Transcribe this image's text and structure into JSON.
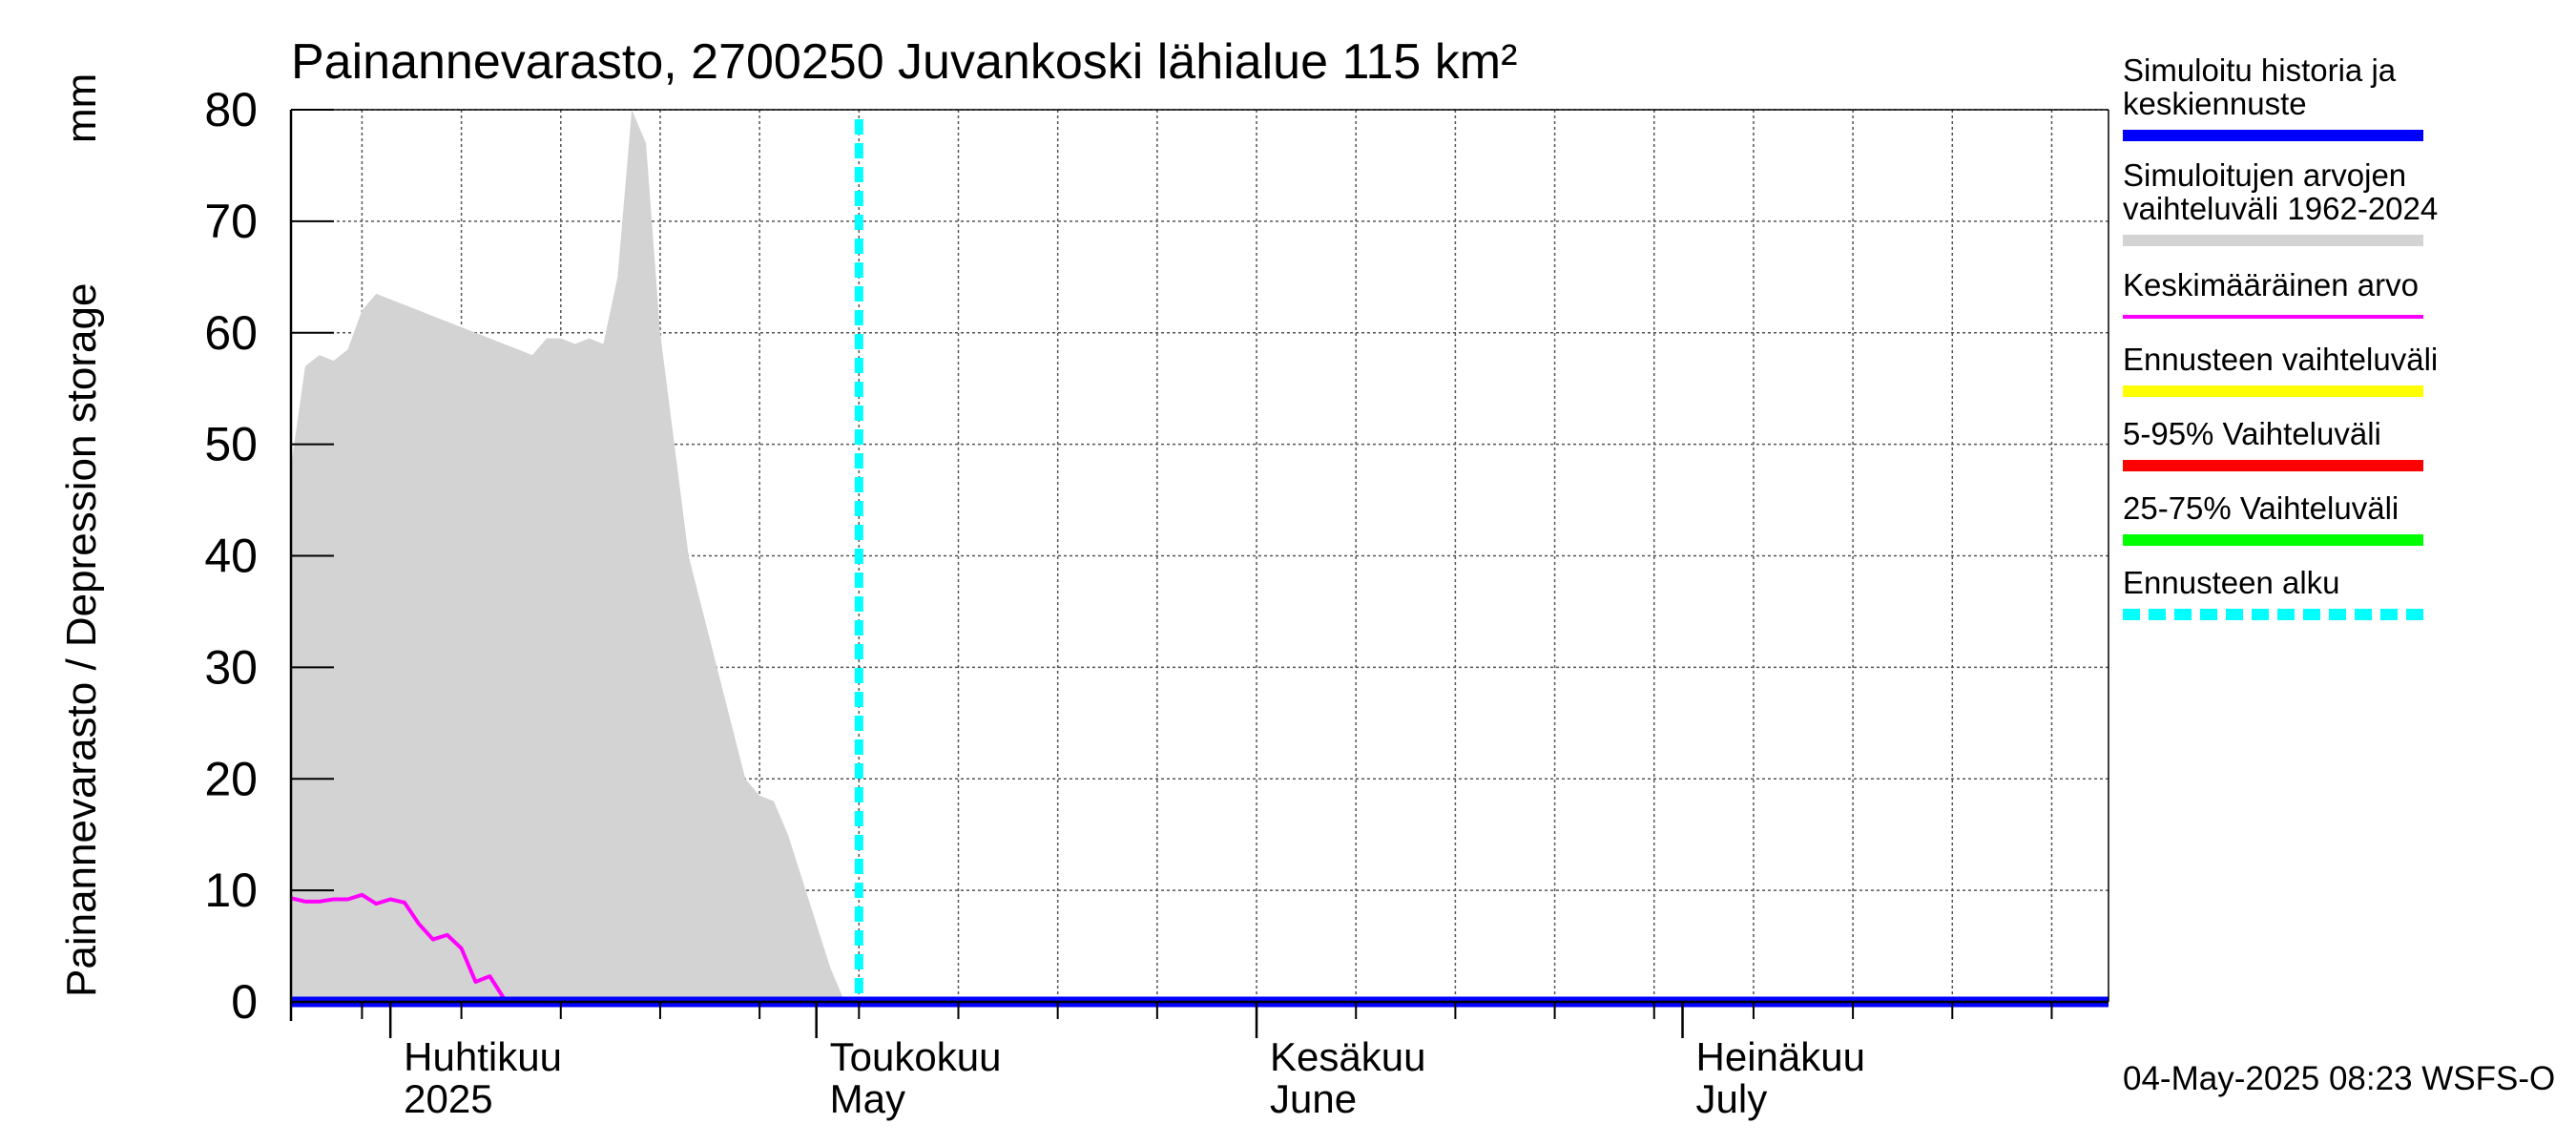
{
  "chart_data": {
    "type": "area",
    "title": "Painannevarasto, 2700250 Juvankoski lähialue 115 km²",
    "ylabel": "Painannevarasto / Depression storage",
    "yunit": "mm",
    "ylim": [
      0,
      80
    ],
    "yticks": [
      0,
      10,
      20,
      30,
      40,
      50,
      60,
      70,
      80
    ],
    "xlim": [
      "2025-03-25",
      "2025-07-31"
    ],
    "grid": true,
    "month_labels": [
      {
        "date": "2025-04-01",
        "line1": "Huhtikuu",
        "line2": "2025"
      },
      {
        "date": "2025-05-01",
        "line1": "Toukokuu",
        "line2": "May"
      },
      {
        "date": "2025-06-01",
        "line1": "Kesäkuu",
        "line2": "June"
      },
      {
        "date": "2025-07-01",
        "line1": "Heinäkuu",
        "line2": "July"
      }
    ],
    "forecast_start": "2025-05-04",
    "series": [
      {
        "name": "Simuloitujen arvojen vaihteluväli 1962-2024",
        "kind": "band",
        "color": "#d3d3d3",
        "x": [
          "2025-03-25",
          "2025-03-26",
          "2025-03-27",
          "2025-03-28",
          "2025-03-29",
          "2025-03-30",
          "2025-03-31",
          "2025-04-01",
          "2025-04-02",
          "2025-04-03",
          "2025-04-04",
          "2025-04-05",
          "2025-04-06",
          "2025-04-07",
          "2025-04-08",
          "2025-04-09",
          "2025-04-10",
          "2025-04-11",
          "2025-04-12",
          "2025-04-13",
          "2025-04-14",
          "2025-04-15",
          "2025-04-16",
          "2025-04-17",
          "2025-04-18",
          "2025-04-19",
          "2025-04-20",
          "2025-04-21",
          "2025-04-22",
          "2025-04-23",
          "2025-04-24",
          "2025-04-25",
          "2025-04-26",
          "2025-04-27",
          "2025-04-28",
          "2025-04-29",
          "2025-04-30",
          "2025-05-01",
          "2025-05-02",
          "2025-05-03",
          "2025-05-04",
          "2025-05-05",
          "2025-05-06",
          "2025-05-07",
          "2025-05-08",
          "2025-05-09",
          "2025-05-10",
          "2025-05-11"
        ],
        "upper": [
          48,
          57,
          58,
          57.5,
          58.5,
          62,
          63.5,
          63,
          62.5,
          62,
          61.5,
          61,
          60.5,
          60,
          59.5,
          59,
          58.5,
          58,
          59.5,
          59.5,
          59,
          59.5,
          59,
          65,
          80,
          77,
          60,
          50,
          40,
          35,
          30,
          25,
          20,
          18.5,
          18,
          15,
          11,
          7,
          3,
          0,
          0,
          0,
          0,
          0,
          0,
          0,
          0,
          0
        ],
        "lower": [
          0,
          0,
          0,
          0,
          0,
          0,
          0,
          0,
          0,
          0,
          0,
          0,
          0,
          0,
          0,
          0,
          0,
          0,
          0,
          0,
          0,
          0,
          0,
          0,
          0,
          0,
          0,
          0,
          0,
          0,
          0,
          0,
          0,
          0,
          0,
          0,
          0,
          0,
          0,
          0,
          0,
          0,
          0,
          0,
          0,
          0,
          0,
          0
        ]
      },
      {
        "name": "Keskimääräinen arvo",
        "kind": "line",
        "color": "#ff00ff",
        "x": [
          "2025-03-25",
          "2025-03-26",
          "2025-03-27",
          "2025-03-28",
          "2025-03-29",
          "2025-03-30",
          "2025-03-31",
          "2025-04-01",
          "2025-04-02",
          "2025-04-03",
          "2025-04-04",
          "2025-04-05",
          "2025-04-06",
          "2025-04-07",
          "2025-04-08",
          "2025-04-09",
          "2025-04-10",
          "2025-04-11",
          "2025-04-12",
          "2025-07-31"
        ],
        "y": [
          9.3,
          9,
          9,
          9.2,
          9.2,
          9.6,
          8.8,
          9.2,
          8.9,
          7,
          5.6,
          6,
          4.8,
          1.8,
          2.3,
          0.3,
          0,
          0,
          0,
          0
        ]
      },
      {
        "name": "Simuloitu historia ja keskiennuste",
        "kind": "line",
        "color": "#0000ff",
        "x": [
          "2025-03-25",
          "2025-07-31"
        ],
        "y": [
          0,
          0
        ]
      }
    ]
  },
  "legend": {
    "items": [
      {
        "line1": "Simuloitu historia ja",
        "line2": "keskiennuste",
        "color": "#0000ff",
        "style": "solid"
      },
      {
        "line1": "Simuloitujen arvojen",
        "line2": "vaihteluväli 1962-2024",
        "color": "#d3d3d3",
        "style": "solid"
      },
      {
        "line1": "Keskimääräinen arvo",
        "line2": "",
        "color": "#ff00ff",
        "style": "thin"
      },
      {
        "line1": "Ennusteen vaihteluväli",
        "line2": "",
        "color": "#ffff00",
        "style": "solid"
      },
      {
        "line1": "5-95% Vaihteluväli",
        "line2": "",
        "color": "#ff0000",
        "style": "solid"
      },
      {
        "line1": "25-75% Vaihteluväli",
        "line2": "",
        "color": "#00ff00",
        "style": "solid"
      },
      {
        "line1": "Ennusteen alku",
        "line2": "",
        "color": "#00ffff",
        "style": "dashed"
      }
    ]
  },
  "footer": {
    "timestamp": "04-May-2025 08:23 WSFS-O"
  }
}
